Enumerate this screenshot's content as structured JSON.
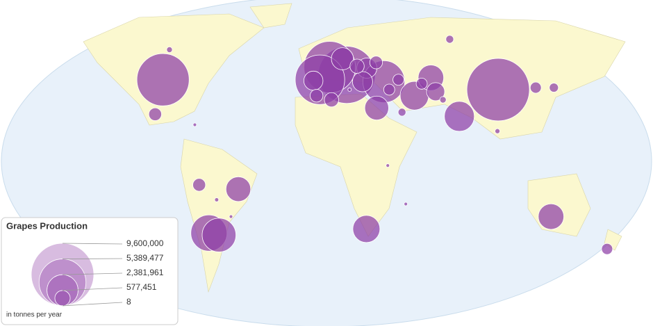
{
  "chart_data": {
    "type": "bubble-map",
    "color": "#8e3fa6",
    "points": [
      {
        "lon": 104,
        "lat": 35,
        "value": 9600000
      },
      {
        "lon": -100,
        "lat": 40,
        "value": 6700000
      },
      {
        "lon": 12.5,
        "lat": 42.5,
        "value": 8000000
      },
      {
        "lon": 2,
        "lat": 46.5,
        "value": 6500000
      },
      {
        "lon": -4,
        "lat": 40,
        "value": 6000000
      },
      {
        "lon": 35,
        "lat": 39,
        "value": 4300000
      },
      {
        "lon": 53,
        "lat": 32,
        "value": 2000000
      },
      {
        "lon": 79,
        "lat": 22,
        "value": 2200000
      },
      {
        "lon": -71,
        "lat": -33,
        "value": 3200000
      },
      {
        "lon": -65,
        "lat": -34,
        "value": 2800000
      },
      {
        "lon": 24,
        "lat": -31,
        "value": 1800000
      },
      {
        "lon": 134,
        "lat": -25,
        "value": 1600000
      },
      {
        "lon": -52,
        "lat": -12,
        "value": 1500000
      },
      {
        "lon": 30,
        "lat": 26,
        "value": 1400000
      },
      {
        "lon": 10,
        "lat": 51,
        "value": 1200000
      },
      {
        "lon": -8,
        "lat": 39.5,
        "value": 900000
      },
      {
        "lon": 25,
        "lat": 46,
        "value": 1000000
      },
      {
        "lon": 22,
        "lat": 39,
        "value": 1000000
      },
      {
        "lon": 64,
        "lat": 41,
        "value": 1600000
      },
      {
        "lon": 66,
        "lat": 34,
        "value": 800000
      },
      {
        "lon": -102,
        "lat": 23,
        "value": 400000
      },
      {
        "lon": -75,
        "lat": -10,
        "value": 400000
      },
      {
        "lon": 3,
        "lat": 30,
        "value": 500000
      },
      {
        "lon": -6,
        "lat": 32,
        "value": 400000
      },
      {
        "lon": 138,
        "lat": 36,
        "value": 200000
      },
      {
        "lon": 127,
        "lat": 36,
        "value": 300000
      },
      {
        "lon": 172,
        "lat": -41,
        "value": 300000
      },
      {
        "lon": 80,
        "lat": 62,
        "value": 150000
      },
      {
        "lon": -100,
        "lat": 56,
        "value": 80000
      },
      {
        "lon": 38,
        "lat": 35,
        "value": 300000
      },
      {
        "lon": 45,
        "lat": 24,
        "value": 150000
      },
      {
        "lon": 19,
        "lat": 47,
        "value": 500000
      },
      {
        "lon": 31,
        "lat": 49,
        "value": 400000
      },
      {
        "lon": 44,
        "lat": 40,
        "value": 300000
      },
      {
        "lon": 70,
        "lat": 30,
        "value": 100000
      },
      {
        "lon": 58,
        "lat": 38,
        "value": 300000
      },
      {
        "lon": 36,
        "lat": -1,
        "value": 30000
      },
      {
        "lon": 47,
        "lat": -19,
        "value": 20000
      },
      {
        "lon": 101,
        "lat": 15,
        "value": 60000
      },
      {
        "lon": -57,
        "lat": -25,
        "value": 20000
      },
      {
        "lon": -65,
        "lat": -17,
        "value": 40000
      },
      {
        "lon": -78,
        "lat": 18,
        "value": 10000
      },
      {
        "lon": 14,
        "lat": 35,
        "value": 30000
      }
    ],
    "legend": {
      "title": "Grapes Production",
      "items": [
        {
          "value": 9600000,
          "label": "9,600,000"
        },
        {
          "value": 5389477,
          "label": "5,389,477"
        },
        {
          "value": 2381961,
          "label": "2,381,961"
        },
        {
          "value": 577451,
          "label": "577,451"
        },
        8
      ],
      "note": "in tonnes per year"
    }
  }
}
